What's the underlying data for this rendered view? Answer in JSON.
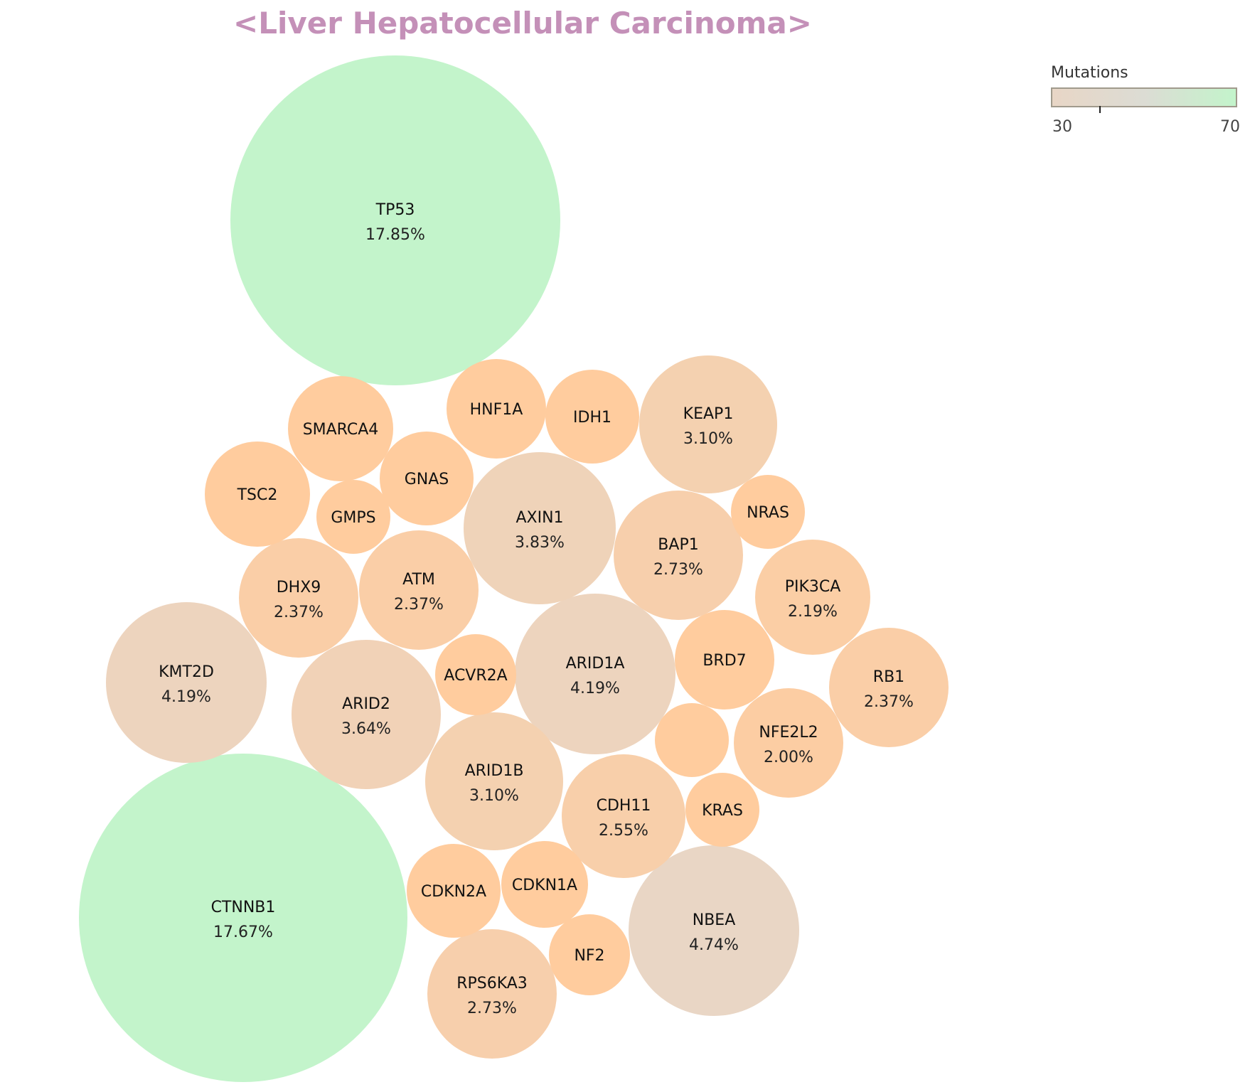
{
  "colors": {
    "low": "#FFCC9E",
    "high": "#C3F4CB",
    "title": "#C490B8"
  },
  "chart_data": {
    "type": "bubble",
    "title": "<Liver Hepatocellular Carcinoma>",
    "color_scale": {
      "title": "Mutations",
      "min": 30,
      "max": 70,
      "min_label": "30",
      "max_label": "70"
    },
    "genes": [
      {
        "name": "TP53",
        "percent": "17.85%"
      },
      {
        "name": "CTNNB1",
        "percent": "17.67%"
      },
      {
        "name": "NBEA",
        "percent": "4.74%"
      },
      {
        "name": "KMT2D",
        "percent": "4.19%"
      },
      {
        "name": "ARID1A",
        "percent": "4.19%"
      },
      {
        "name": "AXIN1",
        "percent": "3.83%"
      },
      {
        "name": "ARID2",
        "percent": "3.64%"
      },
      {
        "name": "KEAP1",
        "percent": "3.10%"
      },
      {
        "name": "ARID1B",
        "percent": "3.10%"
      },
      {
        "name": "BAP1",
        "percent": "2.73%"
      },
      {
        "name": "RPS6KA3",
        "percent": "2.73%"
      },
      {
        "name": "CDH11",
        "percent": "2.55%"
      },
      {
        "name": "DHX9",
        "percent": "2.37%"
      },
      {
        "name": "ATM",
        "percent": "2.37%"
      },
      {
        "name": "RB1",
        "percent": "2.37%"
      },
      {
        "name": "PIK3CA",
        "percent": "2.19%"
      },
      {
        "name": "NFE2L2",
        "percent": "2.00%"
      },
      {
        "name": "SMARCA4",
        "percent": ""
      },
      {
        "name": "TSC2",
        "percent": ""
      },
      {
        "name": "HNF1A",
        "percent": ""
      },
      {
        "name": "BRD7",
        "percent": ""
      },
      {
        "name": "CDKN2A",
        "percent": ""
      },
      {
        "name": "CDKN1A",
        "percent": ""
      },
      {
        "name": "GNAS",
        "percent": ""
      },
      {
        "name": "IDH1",
        "percent": ""
      },
      {
        "name": "ACVR2A",
        "percent": ""
      },
      {
        "name": "NF2",
        "percent": ""
      },
      {
        "name": "GMPS",
        "percent": ""
      },
      {
        "name": "NRAS",
        "percent": ""
      },
      {
        "name": "KRAS",
        "percent": ""
      },
      {
        "name": "",
        "percent": ""
      }
    ]
  }
}
